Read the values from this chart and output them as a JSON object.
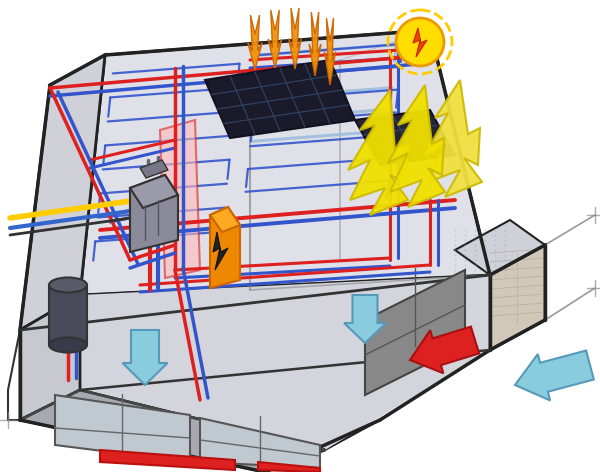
{
  "pipe_red": "#dd2020",
  "pipe_blue": "#3355cc",
  "pipe_blue2": "#4466dd",
  "pipe_light_blue": "#aaccee",
  "yellow_line": "#ffcc00",
  "flame_orange": "#f0920a",
  "sun_yellow": "#ffdd00",
  "sun_orange": "#ff8800",
  "solar_dark": "#1a1a2a",
  "solar_pv_dark": "#252535",
  "boiler_gray": "#7a7a8a",
  "tank_dark": "#4a4a5a",
  "electric_orange": "#ee8800",
  "arrow_red": "#dd2020",
  "arrow_blue": "#88bbdd",
  "arrow_cool_blue": "#99ccdd",
  "wall_light": "#e8e8ec",
  "wall_mid": "#d0d0d8",
  "wall_dark": "#b8b8c0",
  "wall_front": "#c8c8d0",
  "floor_color": "#dcdce4",
  "lower_wall": "#c0c0c8",
  "lower_floor": "#a8a8b0",
  "brick_color": "#d0c8b8",
  "brick_line": "#b0a898",
  "window_glass": "#8899aa",
  "window_dark": "#444455",
  "roof_top": "#e0e0e8",
  "yellow_pv_arrow": "#f0e000",
  "yellow_pv_arrow2": "#e8d800"
}
